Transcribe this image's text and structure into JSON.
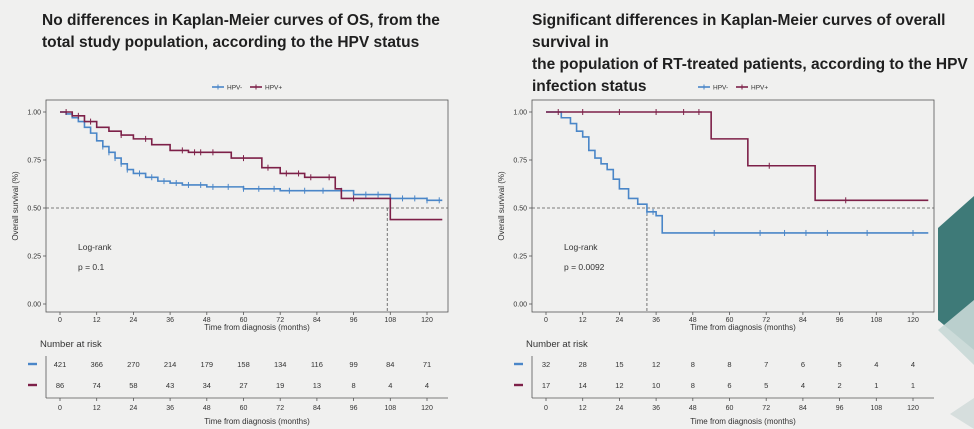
{
  "slide": {
    "title_left": [
      "No differences in Kaplan-Meier curves of OS, from the",
      "total study population, according to the HPV status"
    ],
    "title_right": [
      "Significant differences in Kaplan-Meier curves of overall survival in",
      "the population of RT-treated patients, according to the HPV",
      "infection status"
    ]
  },
  "colors": {
    "hpv_neg": "#4a86c8",
    "hpv_pos": "#7d2048",
    "reference": "#555555"
  },
  "chart_data": [
    {
      "type": "line",
      "subtype": "kaplan-meier",
      "title": "",
      "xlabel": "Time from diagnosis (months)",
      "ylabel": "Overall survival (%)",
      "xlim": [
        0,
        125
      ],
      "ylim": [
        0,
        1.0
      ],
      "x_ticks": [
        0,
        12,
        24,
        36,
        48,
        60,
        72,
        84,
        96,
        108,
        120
      ],
      "y_ticks": [
        "0.00",
        "0.25",
        "0.50",
        "0.75",
        "1.00"
      ],
      "legend": {
        "placement": "top",
        "entries": [
          "HPV-",
          "HPV+"
        ]
      },
      "reference_line": 0.5,
      "median_marker_x": 107,
      "annotation": {
        "label": "Log-rank",
        "pvalue": "p = 0.1"
      },
      "series": [
        {
          "name": "HPV-",
          "x": [
            0,
            2,
            4,
            6,
            8,
            10,
            12,
            14,
            16,
            18,
            20,
            22,
            24,
            28,
            32,
            36,
            40,
            48,
            60,
            72,
            84,
            96,
            108,
            120,
            125
          ],
          "y": [
            1.0,
            0.99,
            0.97,
            0.95,
            0.92,
            0.89,
            0.85,
            0.82,
            0.79,
            0.76,
            0.73,
            0.7,
            0.68,
            0.66,
            0.64,
            0.63,
            0.62,
            0.61,
            0.6,
            0.59,
            0.59,
            0.57,
            0.55,
            0.54,
            0.54
          ],
          "censor_x": [
            14,
            16,
            18,
            20,
            22,
            26,
            30,
            34,
            38,
            42,
            46,
            50,
            55,
            60,
            65,
            70,
            75,
            80,
            86,
            92,
            100,
            104,
            112,
            116,
            120,
            124
          ]
        },
        {
          "name": "HPV+",
          "x": [
            0,
            4,
            8,
            12,
            16,
            20,
            24,
            30,
            36,
            42,
            56,
            66,
            72,
            80,
            90,
            92,
            108,
            125
          ],
          "y": [
            1.0,
            0.98,
            0.95,
            0.92,
            0.9,
            0.88,
            0.86,
            0.83,
            0.8,
            0.79,
            0.76,
            0.71,
            0.68,
            0.66,
            0.6,
            0.55,
            0.44,
            0.44
          ],
          "censor_x": [
            2,
            6,
            10,
            20,
            28,
            40,
            44,
            46,
            50,
            60,
            68,
            74,
            78,
            82,
            88,
            96
          ]
        }
      ],
      "risk_table": {
        "title": "Number at risk",
        "x": [
          0,
          12,
          24,
          36,
          48,
          60,
          72,
          84,
          96,
          108,
          120
        ],
        "rows": [
          {
            "series": "HPV-",
            "values": [
              "421",
              "366",
              "270",
              "214",
              "179",
              "158",
              "134",
              "116",
              "99",
              "84",
              "71"
            ]
          },
          {
            "series": "HPV+",
            "values": [
              "86",
              "74",
              "58",
              "43",
              "34",
              "27",
              "19",
              "13",
              "8",
              "4",
              "4"
            ]
          }
        ],
        "xlabel": "Time from diagnosis (months)"
      }
    },
    {
      "type": "line",
      "subtype": "kaplan-meier",
      "title": "",
      "xlabel": "Time from diagnosis (months)",
      "ylabel": "Overall survival (%)",
      "xlim": [
        0,
        125
      ],
      "ylim": [
        0,
        1.0
      ],
      "x_ticks": [
        0,
        12,
        24,
        36,
        48,
        60,
        72,
        84,
        96,
        108,
        120
      ],
      "y_ticks": [
        "0.00",
        "0.25",
        "0.50",
        "0.75",
        "1.00"
      ],
      "legend": {
        "placement": "top",
        "entries": [
          "HPV-",
          "HPV+"
        ]
      },
      "reference_line": 0.5,
      "median_marker_x": 33,
      "annotation": {
        "label": "Log-rank",
        "pvalue": "p = 0.0092"
      },
      "series": [
        {
          "name": "HPV-",
          "x": [
            0,
            5,
            8,
            10,
            12,
            14,
            16,
            18,
            20,
            22,
            24,
            27,
            30,
            33,
            36,
            38,
            125
          ],
          "y": [
            1.0,
            0.97,
            0.94,
            0.9,
            0.87,
            0.8,
            0.76,
            0.73,
            0.7,
            0.65,
            0.6,
            0.55,
            0.52,
            0.48,
            0.46,
            0.37,
            0.37
          ],
          "censor_x": [
            33,
            35,
            55,
            70,
            78,
            85,
            92,
            105,
            120
          ]
        },
        {
          "name": "HPV+",
          "x": [
            0,
            54,
            66,
            88,
            125
          ],
          "y": [
            1.0,
            0.86,
            0.72,
            0.54,
            0.54
          ],
          "censor_x": [
            4,
            12,
            24,
            36,
            45,
            50,
            73,
            98
          ]
        }
      ],
      "risk_table": {
        "title": "Number at risk",
        "x": [
          0,
          12,
          24,
          36,
          48,
          60,
          72,
          84,
          96,
          108,
          120
        ],
        "rows": [
          {
            "series": "HPV-",
            "values": [
              "32",
              "28",
              "15",
              "12",
              "8",
              "8",
              "7",
              "6",
              "5",
              "4",
              "4"
            ]
          },
          {
            "series": "HPV+",
            "values": [
              "17",
              "14",
              "12",
              "10",
              "8",
              "6",
              "5",
              "4",
              "2",
              "1",
              "1"
            ]
          }
        ],
        "xlabel": "Time from diagnosis (months)"
      }
    }
  ]
}
